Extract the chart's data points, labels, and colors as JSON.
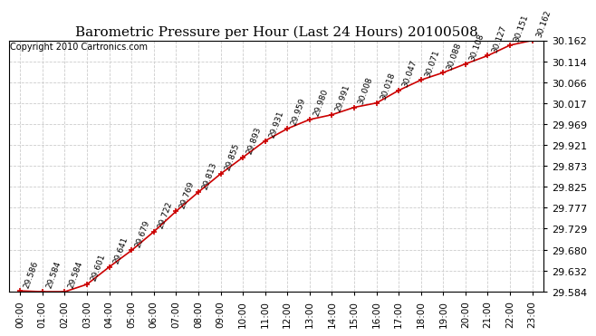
{
  "title": "Barometric Pressure per Hour (Last 24 Hours) 20100508",
  "copyright": "Copyright 2010 Cartronics.com",
  "hours": [
    "00:00",
    "01:00",
    "02:00",
    "03:00",
    "04:00",
    "05:00",
    "06:00",
    "07:00",
    "08:00",
    "09:00",
    "10:00",
    "11:00",
    "12:00",
    "13:00",
    "14:00",
    "15:00",
    "16:00",
    "17:00",
    "18:00",
    "19:00",
    "20:00",
    "21:00",
    "22:00",
    "23:00"
  ],
  "values": [
    29.586,
    29.584,
    29.584,
    29.601,
    29.641,
    29.679,
    29.722,
    29.769,
    29.813,
    29.855,
    29.893,
    29.931,
    29.959,
    29.98,
    29.991,
    30.008,
    30.018,
    30.047,
    30.071,
    30.088,
    30.108,
    30.127,
    30.151,
    30.162
  ],
  "ylim_min": 29.584,
  "ylim_max": 30.162,
  "yticks": [
    29.584,
    29.632,
    29.68,
    29.729,
    29.777,
    29.825,
    29.873,
    29.921,
    29.969,
    30.017,
    30.066,
    30.114,
    30.162
  ],
  "line_color": "#cc0000",
  "marker_color": "#cc0000",
  "bg_color": "#ffffff",
  "plot_bg_color": "#ffffff",
  "grid_color": "#cccccc",
  "title_fontsize": 11,
  "copyright_fontsize": 7,
  "label_fontsize": 6.5,
  "tick_fontsize": 7.5,
  "ytick_fontsize": 8
}
